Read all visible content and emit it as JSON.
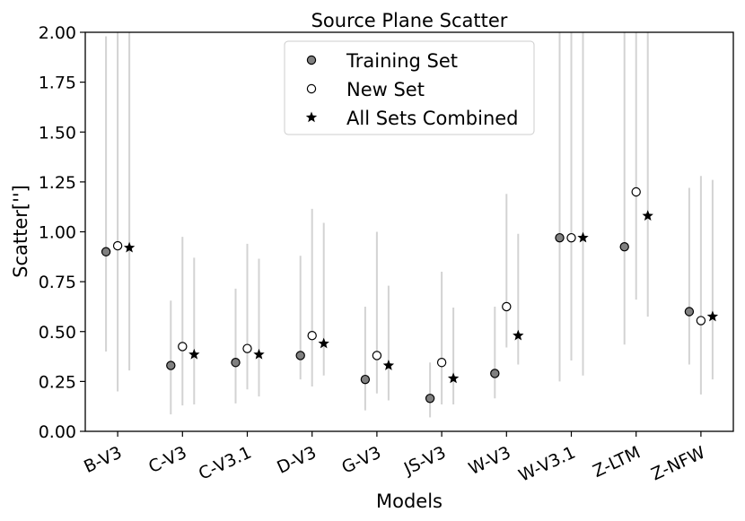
{
  "chart_data": {
    "type": "scatter",
    "title": "Source Plane Scatter",
    "xlabel": "Models",
    "ylabel": "Scatter['']",
    "ylim": [
      0,
      2
    ],
    "yticks": [
      "0.00",
      "0.25",
      "0.50",
      "0.75",
      "1.00",
      "1.25",
      "1.50",
      "1.75",
      "2.00"
    ],
    "categories": [
      "B-V3",
      "C-V3",
      "C-V3.1",
      "D-V3",
      "G-V3",
      "JS-V3",
      "W-V3",
      "W-V3.1",
      "Z-LTM",
      "Z-NFW"
    ],
    "legend_position": "top-center",
    "series": [
      {
        "name": "Training Set",
        "marker": "filled-circle",
        "color": "#808080",
        "values": [
          0.9,
          0.33,
          0.345,
          0.38,
          0.26,
          0.165,
          0.29,
          0.97,
          0.925,
          0.6
        ],
        "err_low": [
          0.4,
          0.085,
          0.14,
          0.26,
          0.105,
          0.07,
          0.165,
          0.25,
          0.435,
          0.335
        ],
        "err_high": [
          1.98,
          0.655,
          0.715,
          0.88,
          0.625,
          0.345,
          0.625,
          2.0,
          2.0,
          1.22
        ]
      },
      {
        "name": "New Set",
        "marker": "open-circle",
        "color": "#ffffff",
        "values": [
          0.93,
          0.425,
          0.415,
          0.48,
          0.38,
          0.345,
          0.625,
          0.97,
          1.2,
          0.555
        ],
        "err_low": [
          0.2,
          0.13,
          0.21,
          0.225,
          0.19,
          0.135,
          0.42,
          0.355,
          0.66,
          0.185
        ],
        "err_high": [
          2.0,
          0.975,
          0.94,
          1.115,
          1.0,
          0.8,
          1.19,
          2.0,
          2.0,
          1.28
        ]
      },
      {
        "name": "All Sets Combined",
        "marker": "star",
        "color": "#000000",
        "values": [
          0.92,
          0.385,
          0.385,
          0.44,
          0.33,
          0.265,
          0.48,
          0.97,
          1.08,
          0.575
        ],
        "err_low": [
          0.305,
          0.135,
          0.175,
          0.28,
          0.155,
          0.135,
          0.335,
          0.28,
          0.575,
          0.26
        ],
        "err_high": [
          2.0,
          0.87,
          0.865,
          1.045,
          0.73,
          0.62,
          0.99,
          2.0,
          2.0,
          1.26
        ]
      }
    ]
  }
}
